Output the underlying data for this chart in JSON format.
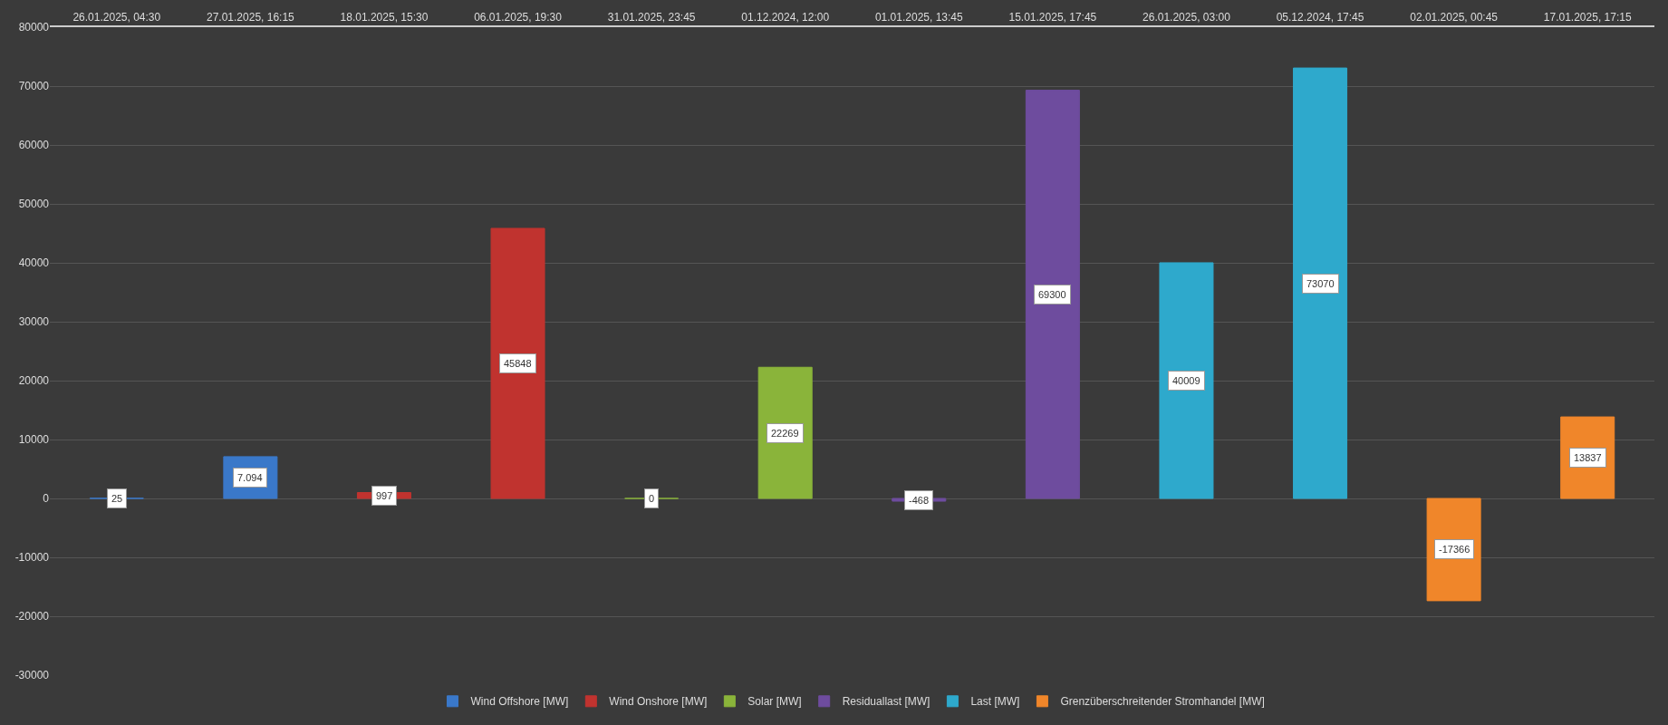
{
  "chart_data": {
    "type": "bar",
    "categories": [
      "26.01.2025, 04:30",
      "27.01.2025, 16:15",
      "18.01.2025, 15:30",
      "06.01.2025, 19:30",
      "31.01.2025, 23:45",
      "01.12.2024, 12:00",
      "01.01.2025, 13:45",
      "15.01.2025, 17:45",
      "26.01.2025, 03:00",
      "05.12.2024, 17:45",
      "02.01.2025, 00:45",
      "17.01.2025, 17:15"
    ],
    "series": [
      {
        "name": "Wind Offshore [MW]",
        "color": "#3a78c9",
        "values": [
          25,
          7094,
          null,
          null,
          null,
          null,
          null,
          null,
          null,
          null,
          null,
          null
        ],
        "value_labels": [
          "25",
          "7.094",
          null,
          null,
          null,
          null,
          null,
          null,
          null,
          null,
          null,
          null
        ]
      },
      {
        "name": "Wind Onshore [MW]",
        "color": "#c0332f",
        "values": [
          null,
          null,
          997,
          45848,
          null,
          null,
          null,
          null,
          null,
          null,
          null,
          null
        ],
        "value_labels": [
          null,
          null,
          "997",
          "45848",
          null,
          null,
          null,
          null,
          null,
          null,
          null,
          null
        ]
      },
      {
        "name": "Solar [MW]",
        "color": "#8ab43a",
        "values": [
          null,
          null,
          null,
          null,
          0,
          22269,
          null,
          null,
          null,
          null,
          null,
          null
        ],
        "value_labels": [
          null,
          null,
          null,
          null,
          "0",
          "22269",
          null,
          null,
          null,
          null,
          null,
          null
        ]
      },
      {
        "name": "Residuallast [MW]",
        "color": "#6e4c9e",
        "values": [
          null,
          null,
          null,
          null,
          null,
          null,
          -468,
          69300,
          null,
          null,
          null,
          null
        ],
        "value_labels": [
          null,
          null,
          null,
          null,
          null,
          null,
          "-468",
          "69300",
          null,
          null,
          null,
          null
        ]
      },
      {
        "name": "Last [MW]",
        "color": "#2ea9cc",
        "values": [
          null,
          null,
          null,
          null,
          null,
          null,
          null,
          null,
          40009,
          73070,
          null,
          null
        ],
        "value_labels": [
          null,
          null,
          null,
          null,
          null,
          null,
          null,
          null,
          "40009",
          "73070",
          null,
          null
        ]
      },
      {
        "name": "Grenzüberschreitender Stromhandel [MW]",
        "color": "#f0862a",
        "values": [
          null,
          null,
          null,
          null,
          null,
          null,
          null,
          null,
          null,
          null,
          -17366,
          13837
        ],
        "value_labels": [
          null,
          null,
          null,
          null,
          null,
          null,
          null,
          null,
          null,
          null,
          "-17366",
          "13837"
        ]
      }
    ],
    "ylim": [
      -30000,
      80000
    ],
    "yticks": [
      -30000,
      -20000,
      -10000,
      0,
      10000,
      20000,
      30000,
      40000,
      50000,
      60000,
      70000,
      80000
    ],
    "grid": "y",
    "legend": "bottom"
  }
}
